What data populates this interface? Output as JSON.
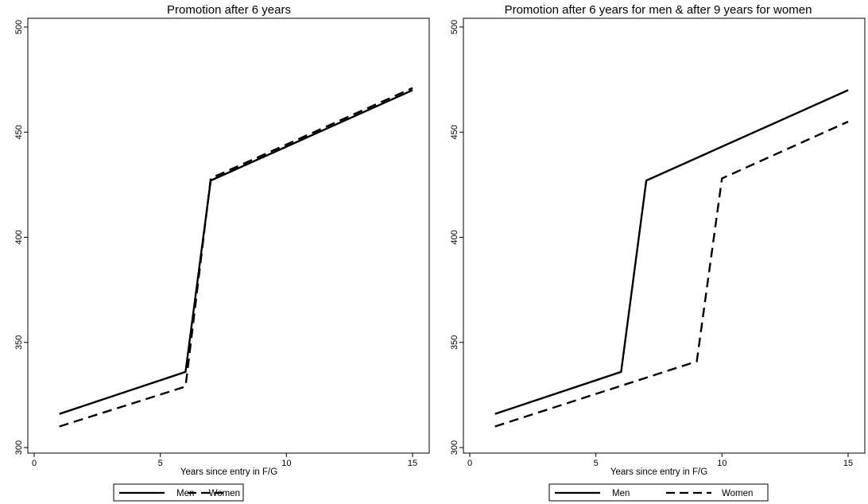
{
  "chart_data": [
    {
      "type": "line",
      "title": "Promotion after 6 years",
      "xlabel": "Years since entry in F/G",
      "ylabel": "",
      "xlim": [
        0,
        15
      ],
      "ylim": [
        300,
        500
      ],
      "xticks": [
        "0",
        "5",
        "10",
        "15"
      ],
      "yticks": [
        "300",
        "350",
        "400",
        "450",
        "500"
      ],
      "grid": false,
      "legend": "bottom",
      "series": [
        {
          "name": "Men",
          "style": "solid",
          "x": [
            1,
            6,
            7,
            15
          ],
          "y": [
            316,
            336,
            427,
            470
          ]
        },
        {
          "name": "Women",
          "style": "dashed",
          "x": [
            1,
            6,
            7,
            15
          ],
          "y": [
            310,
            329,
            428,
            471
          ]
        }
      ]
    },
    {
      "type": "line",
      "title": "Promotion after 6 years for men & after 9 years for women",
      "xlabel": "Years since entry in F/G",
      "ylabel": "",
      "xlim": [
        0,
        15
      ],
      "ylim": [
        300,
        500
      ],
      "xticks": [
        "0",
        "5",
        "10",
        "15"
      ],
      "yticks": [
        "300",
        "350",
        "400",
        "450",
        "500"
      ],
      "grid": false,
      "legend": "bottom",
      "series": [
        {
          "name": "Men",
          "style": "solid",
          "x": [
            1,
            6,
            7,
            15
          ],
          "y": [
            316,
            336,
            427,
            470
          ]
        },
        {
          "name": "Women",
          "style": "dashed",
          "x": [
            1,
            9,
            10,
            15
          ],
          "y": [
            310,
            341,
            428,
            455
          ]
        }
      ]
    }
  ]
}
